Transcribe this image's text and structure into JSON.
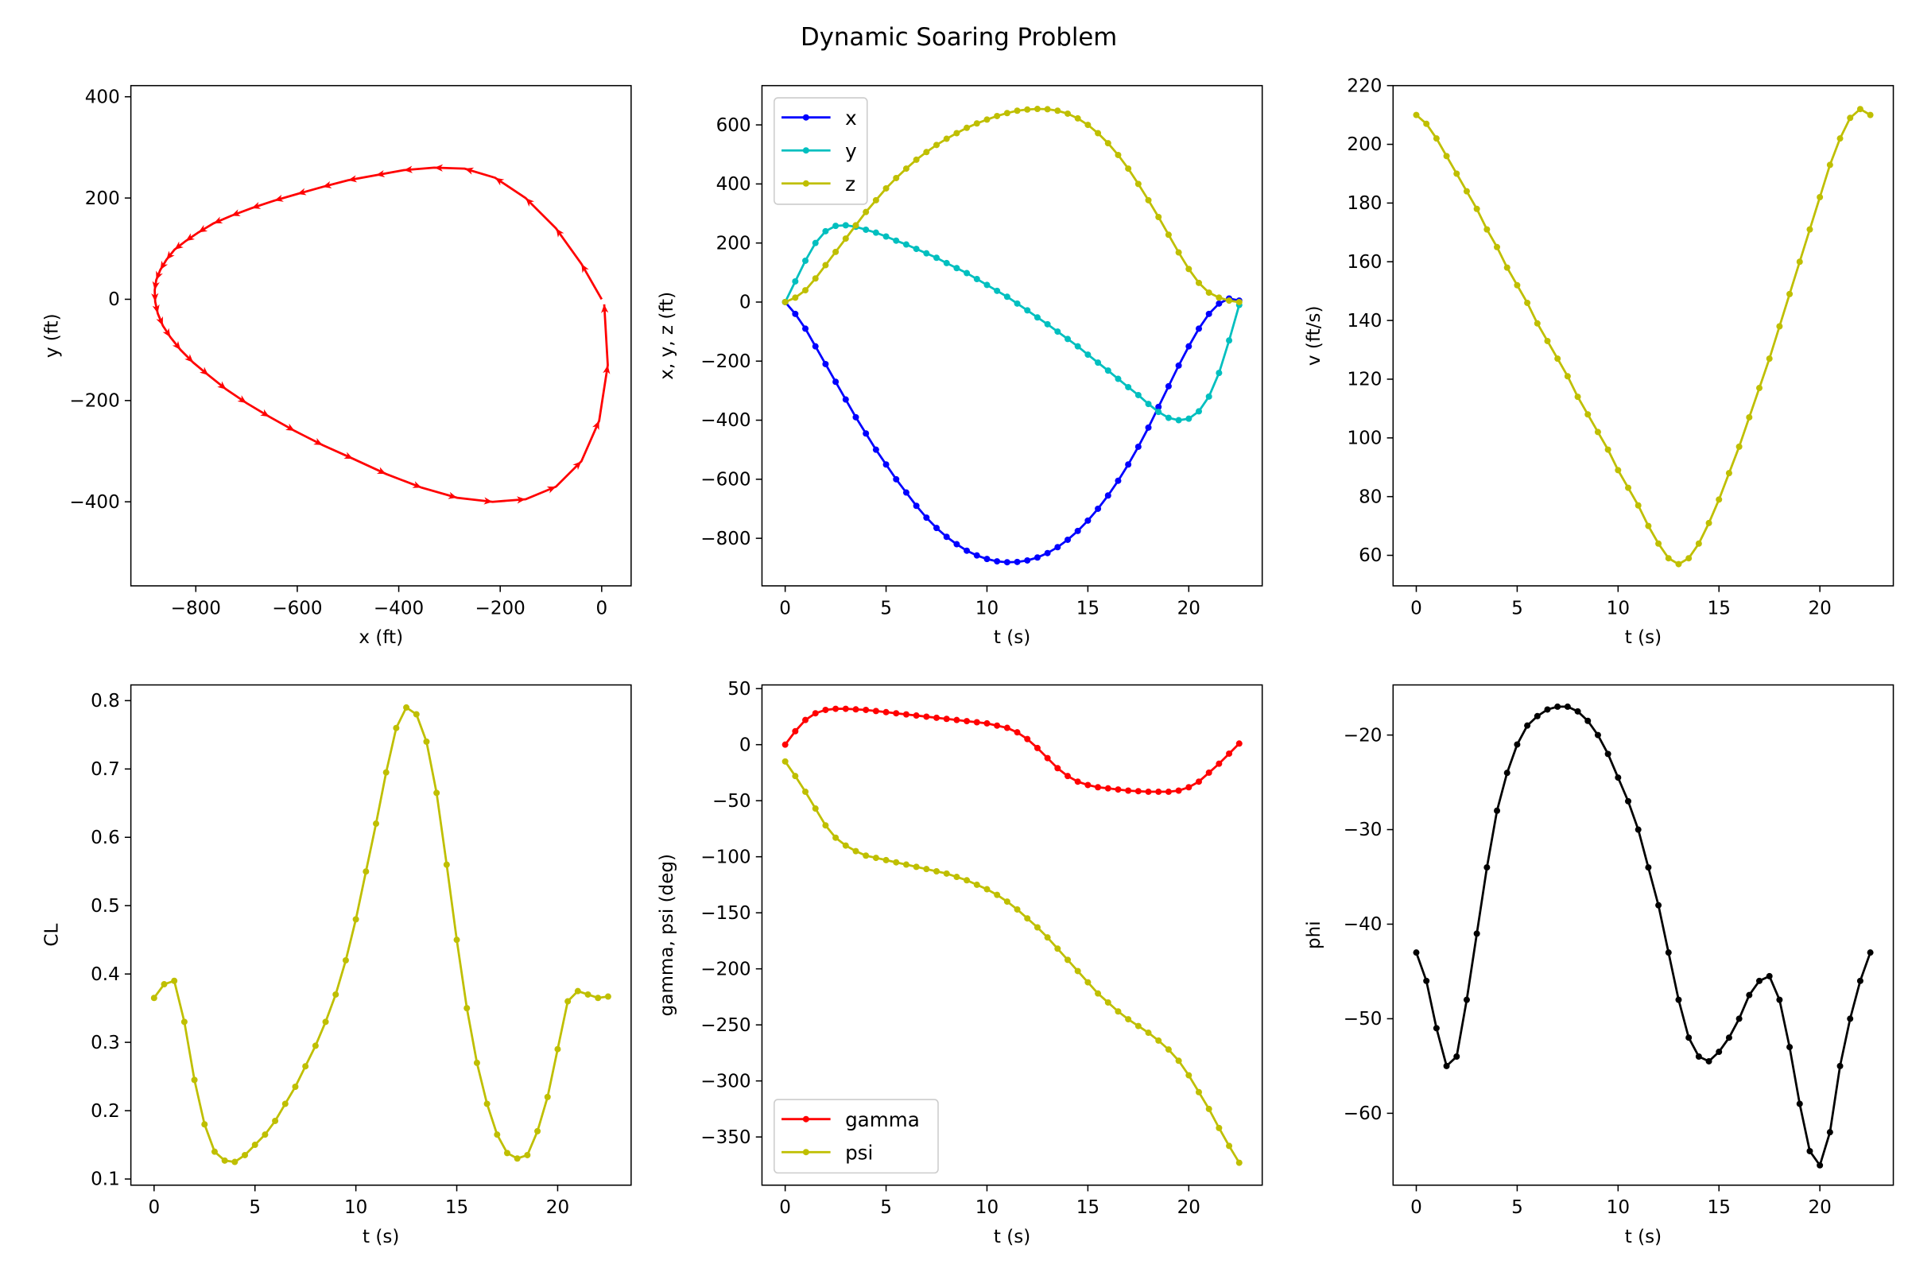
{
  "title": "Dynamic Soaring Problem",
  "chart_data": [
    {
      "type": "line",
      "xlabel": "x (ft)",
      "ylabel": "y (ft)",
      "xlim": [
        -928,
        58
      ],
      "ylim": [
        -566,
        422
      ],
      "xticks": [
        -800,
        -600,
        -400,
        -200,
        0
      ],
      "yticks": [
        -400,
        -200,
        0,
        200,
        400
      ],
      "series": [
        {
          "x_from": "x",
          "y_from": "y",
          "color": "#ff0000",
          "marker": "arrow"
        }
      ]
    },
    {
      "type": "line",
      "xlabel": "t (s)",
      "ylabel": "x, y, z (ft)",
      "xlim": [
        -1.15,
        23.64
      ],
      "ylim": [
        -961,
        733
      ],
      "xticks": [
        0,
        5,
        10,
        15,
        20
      ],
      "yticks": [
        -800,
        -600,
        -400,
        -200,
        0,
        200,
        400,
        600
      ],
      "legend": "top-left",
      "series": [
        {
          "name": "x",
          "key": "x",
          "color": "#0000ff"
        },
        {
          "name": "y",
          "key": "y",
          "color": "#00bfbf"
        },
        {
          "name": "z",
          "key": "z",
          "color": "#bfbf00"
        }
      ]
    },
    {
      "type": "line",
      "xlabel": "t (s)",
      "ylabel": "v (ft/s)",
      "xlim": [
        -1.15,
        23.64
      ],
      "ylim": [
        49.6,
        220
      ],
      "xticks": [
        0,
        5,
        10,
        15,
        20
      ],
      "yticks": [
        60,
        80,
        100,
        120,
        140,
        160,
        180,
        200,
        220
      ],
      "series": [
        {
          "key": "v",
          "color": "#bfbf00"
        }
      ]
    },
    {
      "type": "line",
      "xlabel": "t (s)",
      "ylabel": "CL",
      "xlim": [
        -1.15,
        23.64
      ],
      "ylim": [
        0.091,
        0.823
      ],
      "xticks": [
        0,
        5,
        10,
        15,
        20
      ],
      "yticks": [
        0.1,
        0.2,
        0.3,
        0.4,
        0.5,
        0.6,
        0.7,
        0.8
      ],
      "series": [
        {
          "key": "CL",
          "color": "#bfbf00"
        }
      ]
    },
    {
      "type": "line",
      "xlabel": "t (s)",
      "ylabel": "gamma, psi (deg)",
      "xlim": [
        -1.15,
        23.64
      ],
      "ylim": [
        -393,
        53.3
      ],
      "xticks": [
        0,
        5,
        10,
        15,
        20
      ],
      "yticks": [
        -350,
        -300,
        -250,
        -200,
        -150,
        -100,
        -50,
        0,
        50
      ],
      "legend": "bottom-left",
      "series": [
        {
          "name": "gamma",
          "key": "gamma",
          "color": "#ff0000"
        },
        {
          "name": "psi",
          "key": "psi",
          "color": "#bfbf00"
        }
      ]
    },
    {
      "type": "line",
      "xlabel": "t (s)",
      "ylabel": "phi",
      "xlim": [
        -1.15,
        23.64
      ],
      "ylim": [
        -67.6,
        -14.7
      ],
      "xticks": [
        0,
        5,
        10,
        15,
        20
      ],
      "yticks": [
        -60,
        -50,
        -40,
        -30,
        -20
      ],
      "series": [
        {
          "key": "phi",
          "color": "#000000"
        }
      ]
    }
  ],
  "series_values": {
    "t": [
      0,
      0.5,
      1,
      1.5,
      2,
      2.5,
      3,
      3.5,
      4,
      4.5,
      5,
      5.5,
      6,
      6.5,
      7,
      7.5,
      8,
      8.5,
      9,
      9.5,
      10,
      10.5,
      11,
      11.5,
      12,
      12.5,
      13,
      13.5,
      14,
      14.5,
      15,
      15.5,
      16,
      16.5,
      17,
      17.5,
      18,
      18.5,
      19,
      19.5,
      20,
      20.5,
      21,
      21.5,
      22,
      22.5
    ],
    "x": [
      0,
      -40,
      -90,
      -150,
      -210,
      -270,
      -330,
      -390,
      -445,
      -500,
      -550,
      -600,
      -645,
      -690,
      -730,
      -765,
      -795,
      -820,
      -842,
      -858,
      -870,
      -878,
      -881,
      -880,
      -875,
      -865,
      -850,
      -830,
      -805,
      -775,
      -740,
      -700,
      -655,
      -605,
      -550,
      -490,
      -425,
      -355,
      -285,
      -215,
      -150,
      -90,
      -40,
      -5,
      12,
      5
    ],
    "y": [
      0,
      70,
      140,
      200,
      240,
      258,
      260,
      255,
      245,
      235,
      222,
      208,
      195,
      180,
      165,
      150,
      132,
      115,
      98,
      78,
      58,
      38,
      18,
      -5,
      -28,
      -52,
      -75,
      -100,
      -125,
      -150,
      -178,
      -205,
      -232,
      -260,
      -288,
      -315,
      -345,
      -372,
      -392,
      -400,
      -395,
      -370,
      -320,
      -240,
      -130,
      -10
    ],
    "z": [
      0,
      15,
      40,
      80,
      125,
      170,
      215,
      260,
      305,
      345,
      385,
      420,
      452,
      482,
      508,
      532,
      553,
      572,
      590,
      605,
      618,
      630,
      640,
      648,
      652,
      654,
      653,
      648,
      638,
      622,
      600,
      572,
      538,
      498,
      452,
      400,
      345,
      288,
      228,
      168,
      112,
      65,
      32,
      15,
      5,
      0
    ],
    "v": [
      210,
      207,
      202,
      196,
      190,
      184,
      178,
      171,
      165,
      158,
      152,
      146,
      139,
      133,
      127,
      121,
      114,
      108,
      102,
      96,
      89,
      83,
      77,
      70,
      64,
      59,
      57,
      59,
      64,
      71,
      79,
      88,
      97,
      107,
      117,
      127,
      138,
      149,
      160,
      171,
      182,
      193,
      202,
      209,
      212,
      210
    ],
    "CL": [
      0.365,
      0.385,
      0.39,
      0.33,
      0.245,
      0.18,
      0.14,
      0.127,
      0.125,
      0.135,
      0.15,
      0.165,
      0.185,
      0.21,
      0.235,
      0.265,
      0.295,
      0.33,
      0.37,
      0.42,
      0.48,
      0.55,
      0.62,
      0.695,
      0.76,
      0.79,
      0.78,
      0.74,
      0.665,
      0.56,
      0.45,
      0.35,
      0.27,
      0.21,
      0.165,
      0.138,
      0.13,
      0.135,
      0.17,
      0.22,
      0.29,
      0.36,
      0.375,
      0.37,
      0.365,
      0.367
    ],
    "gamma": [
      0,
      12,
      22,
      28,
      31,
      32,
      32,
      31.5,
      31,
      30,
      29,
      28,
      27,
      26,
      25,
      24,
      23,
      22,
      21,
      20,
      19,
      17,
      15,
      11,
      5,
      -3,
      -12,
      -21,
      -28,
      -33,
      -36,
      -38,
      -39,
      -40,
      -41,
      -41.5,
      -42,
      -42,
      -42,
      -41,
      -38,
      -33,
      -25,
      -17,
      -8,
      1
    ],
    "psi": [
      -15,
      -28,
      -42,
      -57,
      -72,
      -83,
      -90,
      -95,
      -99,
      -101,
      -103,
      -105,
      -107,
      -109,
      -111,
      -113,
      -115,
      -118,
      -121,
      -125,
      -129,
      -134,
      -140,
      -147,
      -155,
      -163,
      -172,
      -182,
      -192,
      -202,
      -212,
      -222,
      -230,
      -238,
      -245,
      -251,
      -257,
      -264,
      -272,
      -282,
      -295,
      -310,
      -325,
      -342,
      -358,
      -373
    ],
    "phi": [
      -43,
      -46,
      -51,
      -55,
      -54,
      -48,
      -41,
      -34,
      -28,
      -24,
      -21,
      -19,
      -18,
      -17.3,
      -17,
      -17,
      -17.5,
      -18.5,
      -20,
      -22,
      -24.5,
      -27,
      -30,
      -34,
      -38,
      -43,
      -48,
      -52,
      -54,
      -54.5,
      -53.5,
      -52,
      -50,
      -47.5,
      -46,
      -45.5,
      -48,
      -53,
      -59,
      -64,
      -65.5,
      -62,
      -55,
      -50,
      -46,
      -43
    ]
  }
}
